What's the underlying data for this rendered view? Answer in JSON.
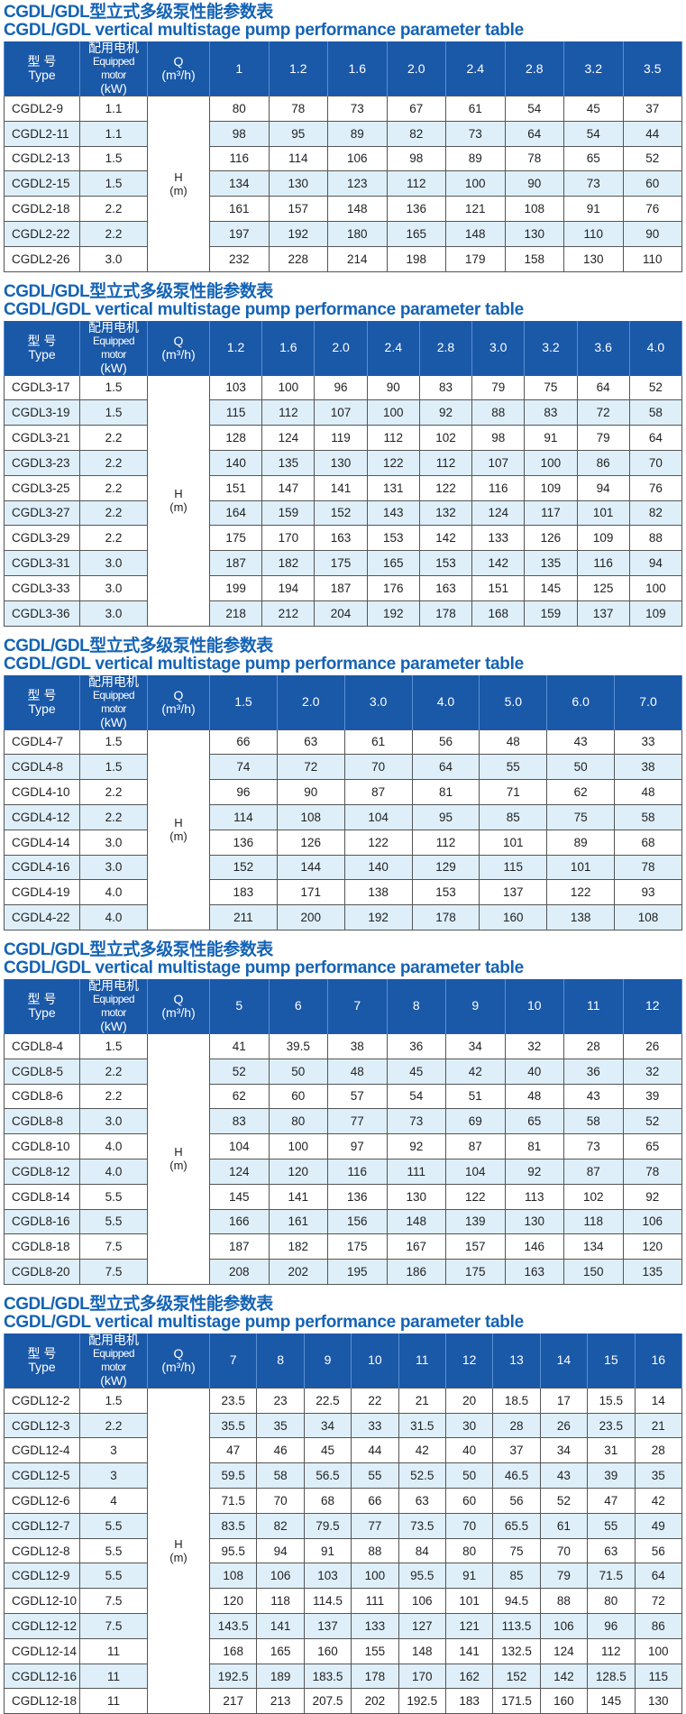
{
  "header_labels": {
    "type_cn": "型 号",
    "type_en": "Type",
    "motor_cn": "配用电机",
    "motor_en": "Equipped motor",
    "motor_unit": "(kW)",
    "q": "Q",
    "q_unit": "(m³/h)",
    "h": "H",
    "h_unit": "(m)"
  },
  "colors": {
    "title": "#1463b5",
    "header_bg": "#1a58a8",
    "alt_row": "#deeffa"
  },
  "tables": [
    {
      "title_cn": "CGDL/GDL型立式多级泵性能参数表",
      "title_en": "CGDL/GDL vertical multistage pump performance parameter table",
      "flows": [
        "1",
        "1.2",
        "1.6",
        "2.0",
        "2.4",
        "2.8",
        "3.2",
        "3.5"
      ],
      "rows": [
        {
          "type": "CGDL2-9",
          "motor": "1.1",
          "heads": [
            "80",
            "78",
            "73",
            "67",
            "61",
            "54",
            "45",
            "37"
          ]
        },
        {
          "type": "CGDL2-11",
          "motor": "1.1",
          "heads": [
            "98",
            "95",
            "89",
            "82",
            "73",
            "64",
            "54",
            "44"
          ]
        },
        {
          "type": "CGDL2-13",
          "motor": "1.5",
          "heads": [
            "116",
            "114",
            "106",
            "98",
            "89",
            "78",
            "65",
            "52"
          ]
        },
        {
          "type": "CGDL2-15",
          "motor": "1.5",
          "heads": [
            "134",
            "130",
            "123",
            "112",
            "100",
            "90",
            "73",
            "60"
          ]
        },
        {
          "type": "CGDL2-18",
          "motor": "2.2",
          "heads": [
            "161",
            "157",
            "148",
            "136",
            "121",
            "108",
            "91",
            "76"
          ]
        },
        {
          "type": "CGDL2-22",
          "motor": "2.2",
          "heads": [
            "197",
            "192",
            "180",
            "165",
            "148",
            "130",
            "110",
            "90"
          ]
        },
        {
          "type": "CGDL2-26",
          "motor": "3.0",
          "heads": [
            "232",
            "228",
            "214",
            "198",
            "179",
            "158",
            "130",
            "110"
          ]
        }
      ]
    },
    {
      "title_cn": "CGDL/GDL型立式多级泵性能参数表",
      "title_en": "CGDL/GDL vertical multistage pump performance parameter table",
      "flows": [
        "1.2",
        "1.6",
        "2.0",
        "2.4",
        "2.8",
        "3.0",
        "3.2",
        "3.6",
        "4.0"
      ],
      "rows": [
        {
          "type": "CGDL3-17",
          "motor": "1.5",
          "heads": [
            "103",
            "100",
            "96",
            "90",
            "83",
            "79",
            "75",
            "64",
            "52"
          ]
        },
        {
          "type": "CGDL3-19",
          "motor": "1.5",
          "heads": [
            "115",
            "112",
            "107",
            "100",
            "92",
            "88",
            "83",
            "72",
            "58"
          ]
        },
        {
          "type": "CGDL3-21",
          "motor": "2.2",
          "heads": [
            "128",
            "124",
            "119",
            "112",
            "102",
            "98",
            "91",
            "79",
            "64"
          ]
        },
        {
          "type": "CGDL3-23",
          "motor": "2.2",
          "heads": [
            "140",
            "135",
            "130",
            "122",
            "112",
            "107",
            "100",
            "86",
            "70"
          ]
        },
        {
          "type": "CGDL3-25",
          "motor": "2.2",
          "heads": [
            "151",
            "147",
            "141",
            "131",
            "122",
            "116",
            "109",
            "94",
            "76"
          ]
        },
        {
          "type": "CGDL3-27",
          "motor": "2.2",
          "heads": [
            "164",
            "159",
            "152",
            "143",
            "132",
            "124",
            "117",
            "101",
            "82"
          ]
        },
        {
          "type": "CGDL3-29",
          "motor": "2.2",
          "heads": [
            "175",
            "170",
            "163",
            "153",
            "142",
            "133",
            "126",
            "109",
            "88"
          ]
        },
        {
          "type": "CGDL3-31",
          "motor": "3.0",
          "heads": [
            "187",
            "182",
            "175",
            "165",
            "153",
            "142",
            "135",
            "116",
            "94"
          ]
        },
        {
          "type": "CGDL3-33",
          "motor": "3.0",
          "heads": [
            "199",
            "194",
            "187",
            "176",
            "163",
            "151",
            "145",
            "125",
            "100"
          ]
        },
        {
          "type": "CGDL3-36",
          "motor": "3.0",
          "heads": [
            "218",
            "212",
            "204",
            "192",
            "178",
            "168",
            "159",
            "137",
            "109"
          ]
        }
      ]
    },
    {
      "title_cn": "CGDL/GDL型立式多级泵性能参数表",
      "title_en": "CGDL/GDL vertical multistage pump performance parameter table",
      "flows": [
        "1.5",
        "2.0",
        "3.0",
        "4.0",
        "5.0",
        "6.0",
        "7.0"
      ],
      "rows": [
        {
          "type": "CGDL4-7",
          "motor": "1.5",
          "heads": [
            "66",
            "63",
            "61",
            "56",
            "48",
            "43",
            "33"
          ]
        },
        {
          "type": "CGDL4-8",
          "motor": "1.5",
          "heads": [
            "74",
            "72",
            "70",
            "64",
            "55",
            "50",
            "38"
          ]
        },
        {
          "type": "CGDL4-10",
          "motor": "2.2",
          "heads": [
            "96",
            "90",
            "87",
            "81",
            "71",
            "62",
            "48"
          ]
        },
        {
          "type": "CGDL4-12",
          "motor": "2.2",
          "heads": [
            "114",
            "108",
            "104",
            "95",
            "85",
            "75",
            "58"
          ]
        },
        {
          "type": "CGDL4-14",
          "motor": "3.0",
          "heads": [
            "136",
            "126",
            "122",
            "112",
            "101",
            "89",
            "68"
          ]
        },
        {
          "type": "CGDL4-16",
          "motor": "3.0",
          "heads": [
            "152",
            "144",
            "140",
            "129",
            "115",
            "101",
            "78"
          ]
        },
        {
          "type": "CGDL4-19",
          "motor": "4.0",
          "heads": [
            "183",
            "171",
            "138",
            "153",
            "137",
            "122",
            "93"
          ]
        },
        {
          "type": "CGDL4-22",
          "motor": "4.0",
          "heads": [
            "211",
            "200",
            "192",
            "178",
            "160",
            "138",
            "108"
          ]
        }
      ]
    },
    {
      "title_cn": "CGDL/GDL型立式多级泵性能参数表",
      "title_en": "CGDL/GDL vertical multistage pump performance parameter table",
      "flows": [
        "5",
        "6",
        "7",
        "8",
        "9",
        "10",
        "11",
        "12"
      ],
      "rows": [
        {
          "type": "CGDL8-4",
          "motor": "1.5",
          "heads": [
            "41",
            "39.5",
            "38",
            "36",
            "34",
            "32",
            "28",
            "26"
          ]
        },
        {
          "type": "CGDL8-5",
          "motor": "2.2",
          "heads": [
            "52",
            "50",
            "48",
            "45",
            "42",
            "40",
            "36",
            "32"
          ]
        },
        {
          "type": "CGDL8-6",
          "motor": "2.2",
          "heads": [
            "62",
            "60",
            "57",
            "54",
            "51",
            "48",
            "43",
            "39"
          ]
        },
        {
          "type": "CGDL8-8",
          "motor": "3.0",
          "heads": [
            "83",
            "80",
            "77",
            "73",
            "69",
            "65",
            "58",
            "52"
          ]
        },
        {
          "type": "CGDL8-10",
          "motor": "4.0",
          "heads": [
            "104",
            "100",
            "97",
            "92",
            "87",
            "81",
            "73",
            "65"
          ]
        },
        {
          "type": "CGDL8-12",
          "motor": "4.0",
          "heads": [
            "124",
            "120",
            "116",
            "111",
            "104",
            "92",
            "87",
            "78"
          ]
        },
        {
          "type": "CGDL8-14",
          "motor": "5.5",
          "heads": [
            "145",
            "141",
            "136",
            "130",
            "122",
            "113",
            "102",
            "92"
          ]
        },
        {
          "type": "CGDL8-16",
          "motor": "5.5",
          "heads": [
            "166",
            "161",
            "156",
            "148",
            "139",
            "130",
            "118",
            "106"
          ]
        },
        {
          "type": "CGDL8-18",
          "motor": "7.5",
          "heads": [
            "187",
            "182",
            "175",
            "167",
            "157",
            "146",
            "134",
            "120"
          ]
        },
        {
          "type": "CGDL8-20",
          "motor": "7.5",
          "heads": [
            "208",
            "202",
            "195",
            "186",
            "175",
            "163",
            "150",
            "135"
          ]
        }
      ]
    },
    {
      "title_cn": "CGDL/GDL型立式多级泵性能参数表",
      "title_en": "CGDL/GDL vertical multistage pump performance parameter table",
      "flows": [
        "7",
        "8",
        "9",
        "10",
        "11",
        "12",
        "13",
        "14",
        "15",
        "16"
      ],
      "rows": [
        {
          "type": "CGDL12-2",
          "motor": "1.5",
          "heads": [
            "23.5",
            "23",
            "22.5",
            "22",
            "21",
            "20",
            "18.5",
            "17",
            "15.5",
            "14"
          ]
        },
        {
          "type": "CGDL12-3",
          "motor": "2.2",
          "heads": [
            "35.5",
            "35",
            "34",
            "33",
            "31.5",
            "30",
            "28",
            "26",
            "23.5",
            "21"
          ]
        },
        {
          "type": "CGDL12-4",
          "motor": "3",
          "heads": [
            "47",
            "46",
            "45",
            "44",
            "42",
            "40",
            "37",
            "34",
            "31",
            "28"
          ]
        },
        {
          "type": "CGDL12-5",
          "motor": "3",
          "heads": [
            "59.5",
            "58",
            "56.5",
            "55",
            "52.5",
            "50",
            "46.5",
            "43",
            "39",
            "35"
          ]
        },
        {
          "type": "CGDL12-6",
          "motor": "4",
          "heads": [
            "71.5",
            "70",
            "68",
            "66",
            "63",
            "60",
            "56",
            "52",
            "47",
            "42"
          ]
        },
        {
          "type": "CGDL12-7",
          "motor": "5.5",
          "heads": [
            "83.5",
            "82",
            "79.5",
            "77",
            "73.5",
            "70",
            "65.5",
            "61",
            "55",
            "49"
          ]
        },
        {
          "type": "CGDL12-8",
          "motor": "5.5",
          "heads": [
            "95.5",
            "94",
            "91",
            "88",
            "84",
            "80",
            "75",
            "70",
            "63",
            "56"
          ]
        },
        {
          "type": "CGDL12-9",
          "motor": "5.5",
          "heads": [
            "108",
            "106",
            "103",
            "100",
            "95.5",
            "91",
            "85",
            "79",
            "71.5",
            "64"
          ]
        },
        {
          "type": "CGDL12-10",
          "motor": "7.5",
          "heads": [
            "120",
            "118",
            "114.5",
            "111",
            "106",
            "101",
            "94.5",
            "88",
            "80",
            "72"
          ]
        },
        {
          "type": "CGDL12-12",
          "motor": "7.5",
          "heads": [
            "143.5",
            "141",
            "137",
            "133",
            "127",
            "121",
            "113.5",
            "106",
            "96",
            "86"
          ]
        },
        {
          "type": "CGDL12-14",
          "motor": "11",
          "heads": [
            "168",
            "165",
            "160",
            "155",
            "148",
            "141",
            "132.5",
            "124",
            "112",
            "100"
          ]
        },
        {
          "type": "CGDL12-16",
          "motor": "11",
          "heads": [
            "192.5",
            "189",
            "183.5",
            "178",
            "170",
            "162",
            "152",
            "142",
            "128.5",
            "115"
          ]
        },
        {
          "type": "CGDL12-18",
          "motor": "11",
          "heads": [
            "217",
            "213",
            "207.5",
            "202",
            "192.5",
            "183",
            "171.5",
            "160",
            "145",
            "130"
          ]
        }
      ]
    }
  ]
}
